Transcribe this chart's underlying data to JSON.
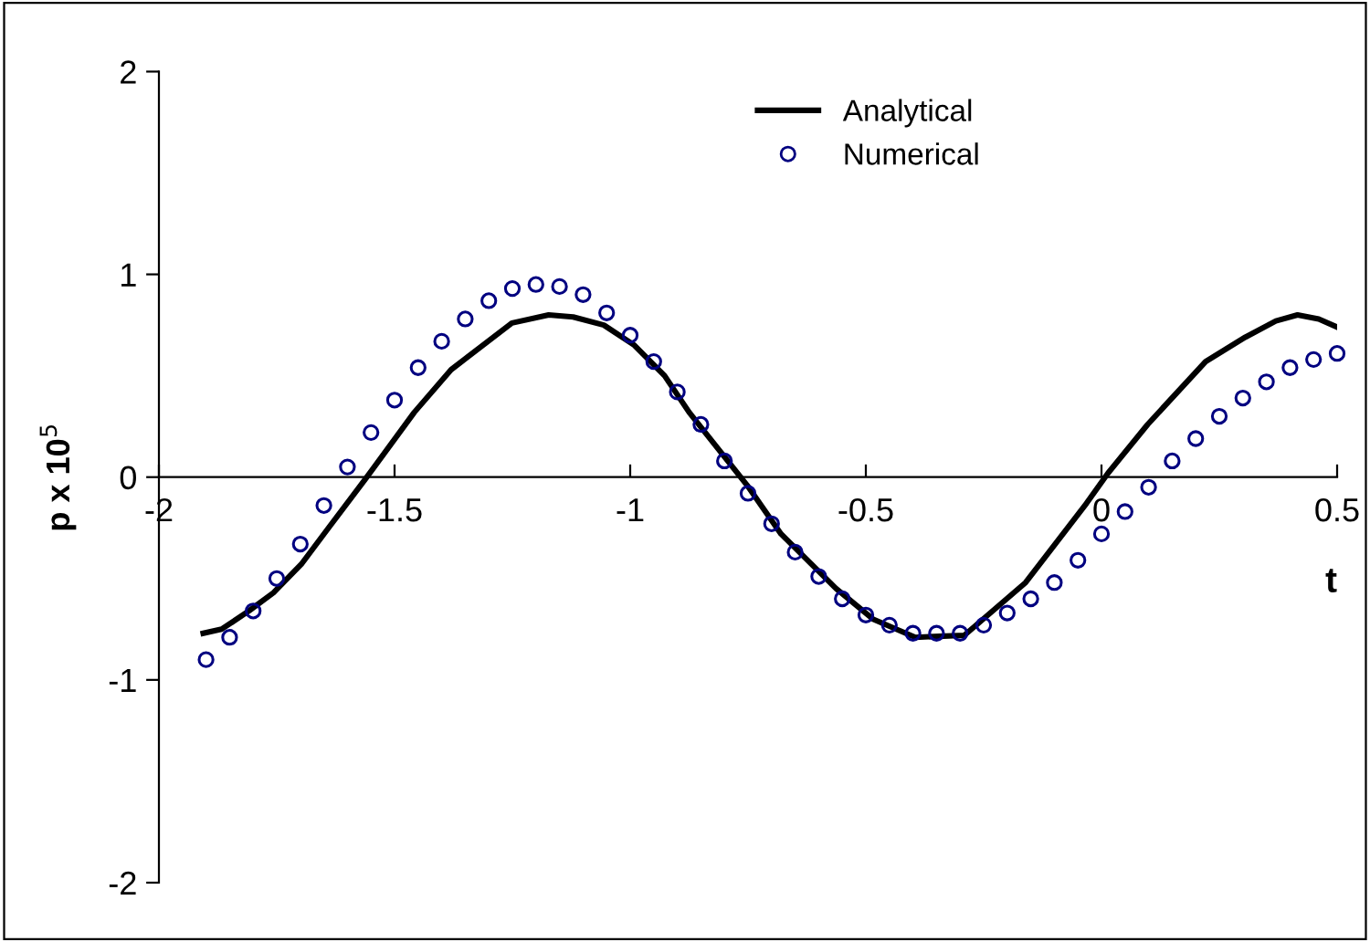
{
  "chart_data": {
    "type": "line",
    "xlabel": "t",
    "ylabel": "p x 10$^{5}$",
    "xlim": [
      -2,
      0.5
    ],
    "xticks": [
      -2,
      -1.5,
      -1,
      -0.5,
      0,
      0.5
    ],
    "ylim": [
      -2,
      2
    ],
    "yticks": [
      -2,
      -1,
      0,
      1,
      2
    ],
    "grid": false,
    "legend": "top right",
    "series": [
      {
        "name": "Analytical",
        "color": "#000000",
        "marker": "none",
        "line_style": "solid",
        "x": [
          -1.906,
          -1.867,
          -1.809,
          -1.757,
          -1.698,
          -1.64,
          -1.562,
          -1.458,
          -1.38,
          -1.251,
          -1.173,
          -1.121,
          -1.056,
          -0.991,
          -0.927,
          -0.875,
          -0.752,
          -0.68,
          -0.563,
          -0.485,
          -0.395,
          -0.291,
          -0.161,
          -0.032,
          0.014,
          0.098,
          0.221,
          0.305,
          0.37,
          0.416,
          0.461,
          0.5
        ],
        "values": [
          -0.77,
          -0.75,
          -0.66,
          -0.57,
          -0.43,
          -0.25,
          -0.01,
          0.32,
          0.53,
          0.76,
          0.8,
          0.79,
          0.75,
          0.65,
          0.5,
          0.32,
          -0.04,
          -0.28,
          -0.55,
          -0.7,
          -0.79,
          -0.78,
          -0.52,
          -0.13,
          0.02,
          0.26,
          0.57,
          0.69,
          0.77,
          0.8,
          0.78,
          0.74
        ]
      },
      {
        "name": "Numerical",
        "color": "#000080",
        "type": "scatter",
        "marker": "circle",
        "x": [
          -1.9,
          -1.85,
          -1.8,
          -1.75,
          -1.7,
          -1.65,
          -1.6,
          -1.55,
          -1.5,
          -1.45,
          -1.4,
          -1.35,
          -1.3,
          -1.25,
          -1.2,
          -1.15,
          -1.1,
          -1.05,
          -1,
          -0.95,
          -0.9,
          -0.85,
          -0.8,
          -0.75,
          -0.7,
          -0.65,
          -0.6,
          -0.55,
          -0.5,
          -0.45,
          -0.4,
          -0.35,
          -0.3,
          -0.25,
          -0.2,
          -0.15,
          -0.1,
          -0.05,
          0,
          0.05,
          0.1,
          0.15,
          0.2,
          0.25,
          0.3,
          0.35,
          0.4,
          0.45,
          0.5
        ],
        "values": [
          -0.9,
          -0.79,
          -0.66,
          -0.5,
          -0.33,
          -0.14,
          0.05,
          0.22,
          0.38,
          0.54,
          0.67,
          0.78,
          0.87,
          0.93,
          0.95,
          0.94,
          0.9,
          0.81,
          0.7,
          0.57,
          0.42,
          0.26,
          0.08,
          -0.08,
          -0.23,
          -0.37,
          -0.49,
          -0.6,
          -0.68,
          -0.73,
          -0.77,
          -0.77,
          -0.77,
          -0.73,
          -0.67,
          -0.6,
          -0.52,
          -0.41,
          -0.28,
          -0.17,
          -0.05,
          0.08,
          0.19,
          0.3,
          0.39,
          0.47,
          0.54,
          0.58,
          0.61
        ]
      }
    ]
  }
}
